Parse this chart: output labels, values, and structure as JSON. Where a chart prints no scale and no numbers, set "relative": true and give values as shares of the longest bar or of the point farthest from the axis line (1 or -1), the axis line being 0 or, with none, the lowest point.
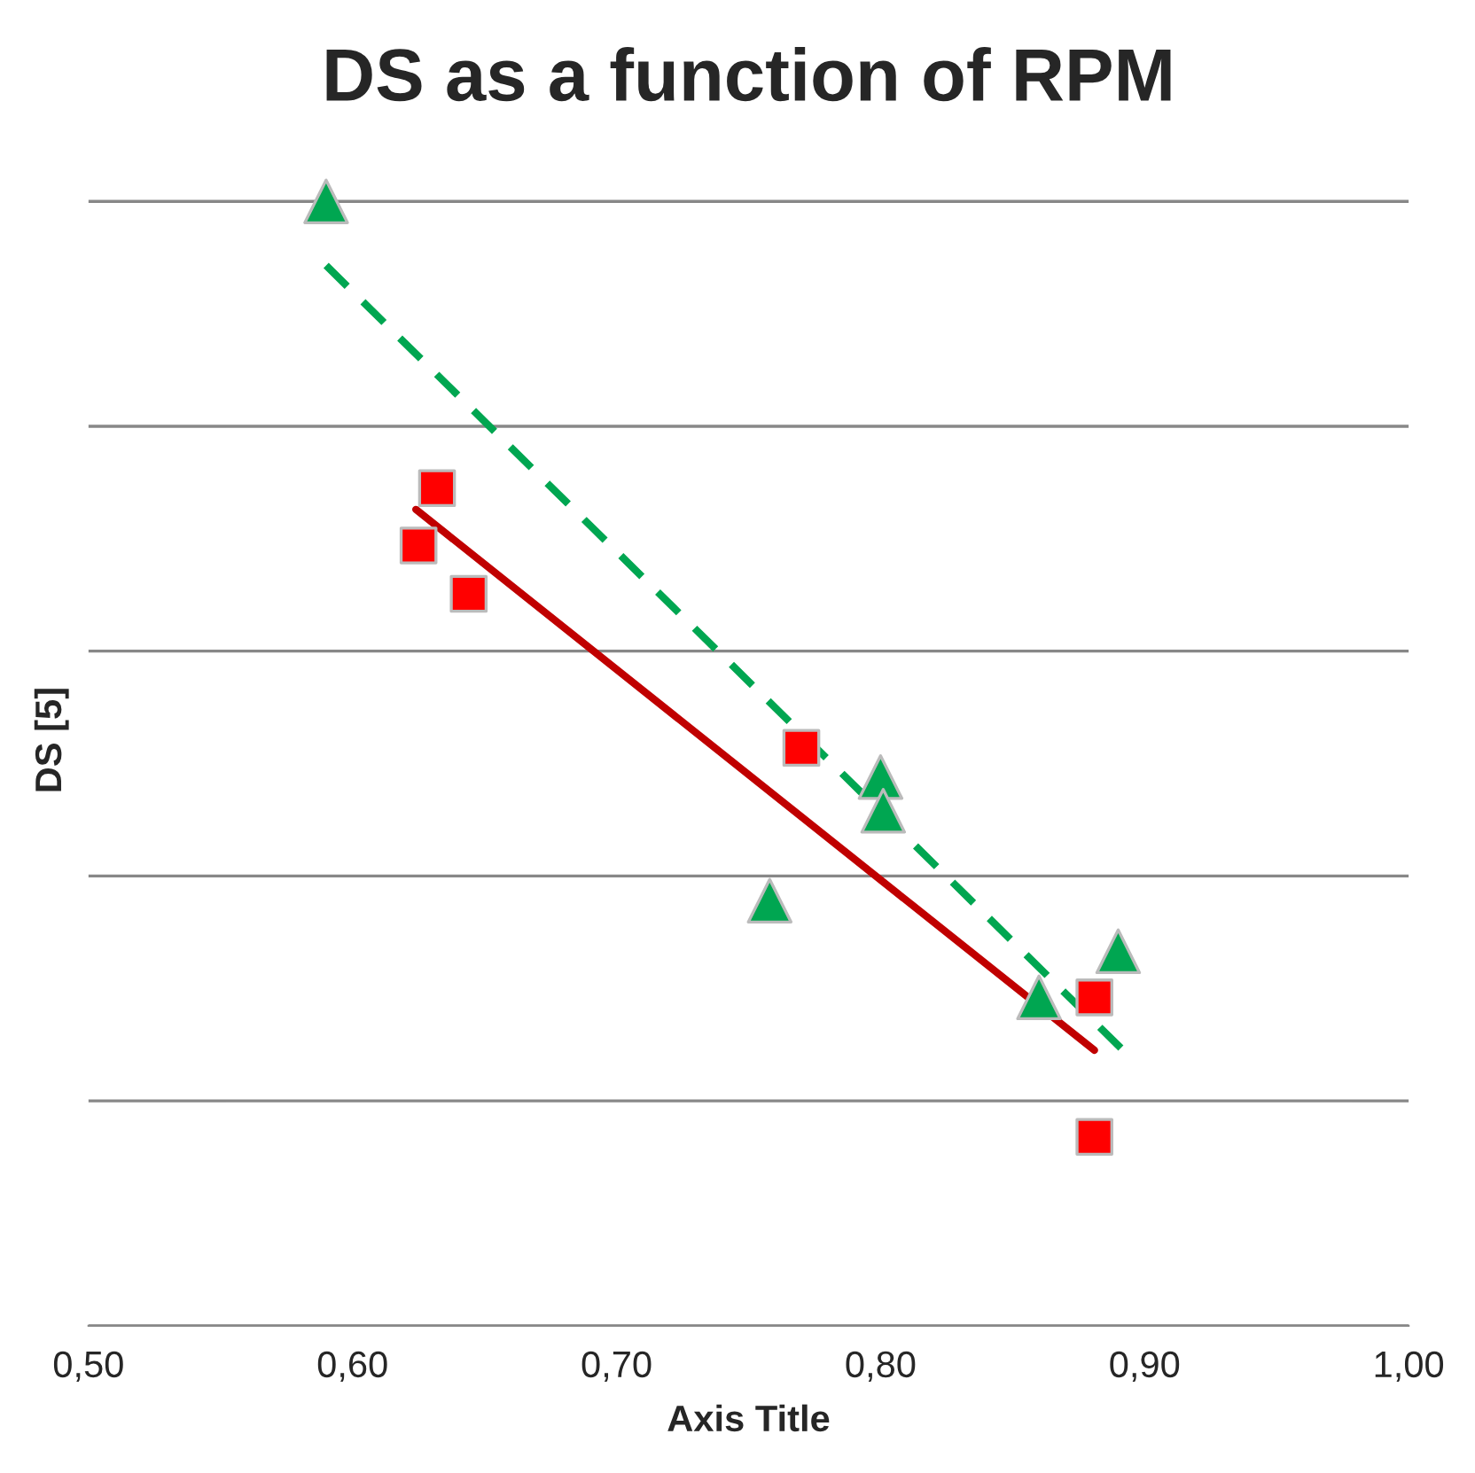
{
  "chart_data": {
    "type": "scatter",
    "title": "DS as a function of RPM",
    "xlabel": "Axis Title",
    "ylabel": "DS [5]",
    "relative": true,
    "xlim": [
      0.5,
      1.0
    ],
    "xticks": [
      {
        "value": 0.5,
        "label": "0,50"
      },
      {
        "value": 0.6,
        "label": "0,60"
      },
      {
        "value": 0.7,
        "label": "0,70"
      },
      {
        "value": 0.8,
        "label": "0,80"
      },
      {
        "value": 0.9,
        "label": "0,90"
      },
      {
        "value": 1.0,
        "label": "1,00"
      }
    ],
    "grid": "y",
    "legend": false,
    "tick_labels": "x",
    "series": [
      {
        "color": "#00a651",
        "marker": "triangle",
        "x": [
          0.59,
          0.758,
          0.8,
          0.801,
          0.86,
          0.89
        ],
        "values": [
          1.0,
          0.378,
          0.488,
          0.458,
          0.292,
          0.333
        ]
      },
      {
        "color": "#ff0000",
        "marker": "square",
        "x": [
          0.632,
          0.625,
          0.644,
          0.77,
          0.881,
          0.881
        ],
        "values": [
          0.745,
          0.694,
          0.651,
          0.514,
          0.292,
          0.168
        ]
      },
      {
        "type": "line",
        "color": "#00a651",
        "line_style": "dashed",
        "x": [
          0.59,
          0.891
        ],
        "values": [
          0.943,
          0.247
        ]
      },
      {
        "type": "line",
        "color": "#c00000",
        "line_style": "solid",
        "x": [
          0.624,
          0.881
        ],
        "values": [
          0.726,
          0.245
        ]
      }
    ]
  }
}
